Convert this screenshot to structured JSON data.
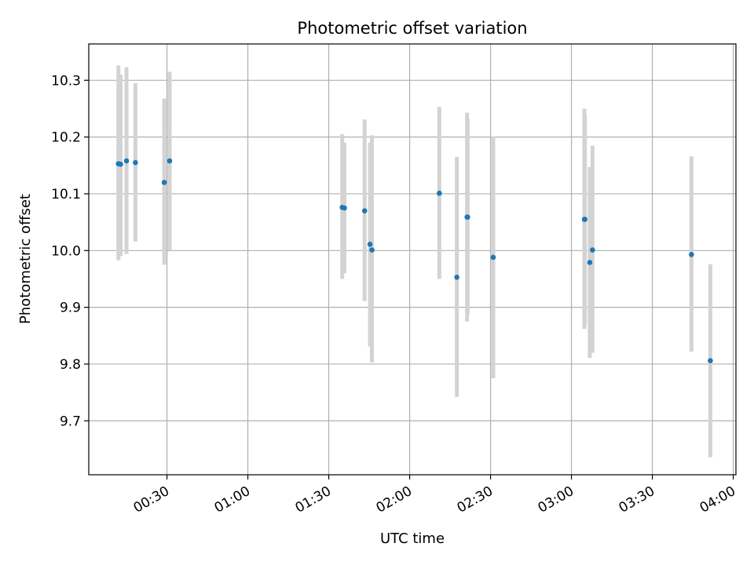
{
  "chart_data": {
    "type": "scatter",
    "title": "Photometric offset variation",
    "xlabel": "UTC time",
    "ylabel": "Photometric offset",
    "x_axis": "time",
    "xlim": [
      "00:01",
      "04:01"
    ],
    "ylim": [
      9.605,
      10.364
    ],
    "x_ticks": [
      "00:30",
      "01:00",
      "01:30",
      "02:00",
      "02:30",
      "03:00",
      "03:30",
      "04:00"
    ],
    "y_ticks": [
      "9.7",
      "9.8",
      "9.9",
      "10.0",
      "10.1",
      "10.2",
      "10.3"
    ],
    "grid": true,
    "colors": {
      "point": "#1f77b4",
      "errorbar": "#d3d3d3",
      "grid": "#b0b0b0"
    },
    "points": [
      {
        "x": "00:12:00",
        "y": 10.153,
        "yerr_low": 9.983,
        "yerr_high": 10.326
      },
      {
        "x": "00:12:48",
        "y": 10.152,
        "yerr_low": 9.99,
        "yerr_high": 10.31
      },
      {
        "x": "00:15:00",
        "y": 10.158,
        "yerr_low": 9.994,
        "yerr_high": 10.323
      },
      {
        "x": "00:18:18",
        "y": 10.155,
        "yerr_low": 10.016,
        "yerr_high": 10.295
      },
      {
        "x": "00:29:00",
        "y": 10.12,
        "yerr_low": 9.975,
        "yerr_high": 10.268
      },
      {
        "x": "00:31:00",
        "y": 10.158,
        "yerr_low": 10.001,
        "yerr_high": 10.315
      },
      {
        "x": "01:35:00",
        "y": 10.076,
        "yerr_low": 9.95,
        "yerr_high": 10.205
      },
      {
        "x": "01:35:48",
        "y": 10.075,
        "yerr_low": 9.96,
        "yerr_high": 10.19
      },
      {
        "x": "01:43:18",
        "y": 10.07,
        "yerr_low": 9.911,
        "yerr_high": 10.231
      },
      {
        "x": "01:45:18",
        "y": 10.011,
        "yerr_low": 9.831,
        "yerr_high": 10.19
      },
      {
        "x": "01:46:00",
        "y": 10.001,
        "yerr_low": 9.803,
        "yerr_high": 10.203
      },
      {
        "x": "02:11:00",
        "y": 10.101,
        "yerr_low": 9.95,
        "yerr_high": 10.253
      },
      {
        "x": "02:17:30",
        "y": 9.953,
        "yerr_low": 9.742,
        "yerr_high": 10.165
      },
      {
        "x": "02:21:18",
        "y": 10.059,
        "yerr_low": 9.875,
        "yerr_high": 10.243
      },
      {
        "x": "02:21:30",
        "y": 10.059,
        "yerr_low": 9.888,
        "yerr_high": 10.232
      },
      {
        "x": "02:31:00",
        "y": 9.988,
        "yerr_low": 9.775,
        "yerr_high": 10.201
      },
      {
        "x": "03:04:48",
        "y": 10.055,
        "yerr_low": 9.862,
        "yerr_high": 10.25
      },
      {
        "x": "03:05:00",
        "y": 10.055,
        "yerr_low": 9.87,
        "yerr_high": 10.24
      },
      {
        "x": "03:06:48",
        "y": 9.979,
        "yerr_low": 9.811,
        "yerr_high": 10.147
      },
      {
        "x": "03:07:48",
        "y": 10.001,
        "yerr_low": 9.82,
        "yerr_high": 10.185
      },
      {
        "x": "03:44:30",
        "y": 9.993,
        "yerr_low": 9.822,
        "yerr_high": 10.166
      },
      {
        "x": "03:51:30",
        "y": 9.806,
        "yerr_low": 9.636,
        "yerr_high": 9.976
      }
    ]
  }
}
